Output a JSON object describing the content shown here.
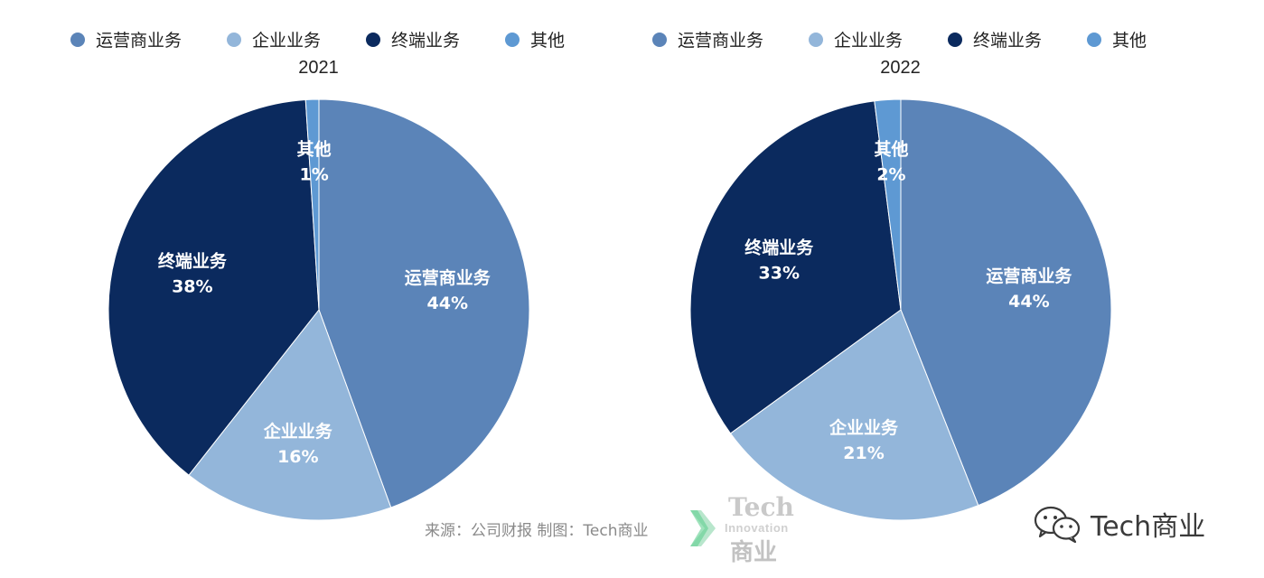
{
  "chart_data": [
    {
      "type": "pie",
      "title": "2021",
      "legend_position": "top",
      "categories": [
        "运营商业务",
        "企业业务",
        "终端业务",
        "其他"
      ],
      "values": [
        44,
        16,
        38,
        1
      ],
      "value_labels": [
        "44%",
        "16%",
        "38%",
        "1%"
      ],
      "colors": [
        "#5b84b8",
        "#93b6da",
        "#0b2a5e",
        "#5e99d3"
      ]
    },
    {
      "type": "pie",
      "title": "2022",
      "legend_position": "top",
      "categories": [
        "运营商业务",
        "企业业务",
        "终端业务",
        "其他"
      ],
      "values": [
        44,
        21,
        33,
        2
      ],
      "value_labels": [
        "44%",
        "21%",
        "33%",
        "2%"
      ],
      "colors": [
        "#5b84b8",
        "#93b6da",
        "#0b2a5e",
        "#5e99d3"
      ]
    }
  ],
  "footer": {
    "source_text": "来源：公司财报 制图：Tech商业",
    "logo_line1": "Tech",
    "logo_line2": "Innovation",
    "logo_line3": "商业",
    "logo_icon": "green-chevron-icon",
    "wechat_icon": "wechat-icon",
    "wechat_account": "Tech商业"
  }
}
